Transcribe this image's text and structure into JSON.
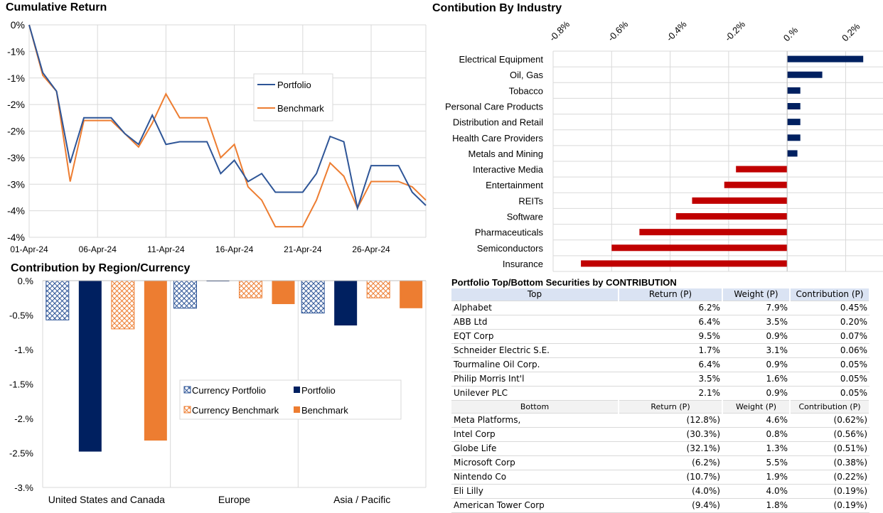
{
  "colors": {
    "portfolio": "#2e5597",
    "benchmark": "#ed7d31",
    "navy": "#002060",
    "red": "#c00000",
    "grid": "#d9d9d9"
  },
  "cumulative": {
    "title": "Cumulative Return",
    "legend": [
      "Portfolio",
      "Benchmark"
    ],
    "chart_data": {
      "type": "line",
      "title": "Cumulative Return",
      "x_tick_labels": [
        "01-Apr-24",
        "06-Apr-24",
        "11-Apr-24",
        "16-Apr-24",
        "21-Apr-24",
        "26-Apr-24"
      ],
      "y_tick_labels": [
        "0%",
        "-1%",
        "-1%",
        "-2%",
        "-2%",
        "-3%",
        "-3%",
        "-4%",
        "-4%"
      ],
      "ylim": [
        -4.0,
        0.0
      ],
      "x_range": [
        0,
        29
      ],
      "grid": true,
      "legend_position": "center-right",
      "series": [
        {
          "name": "Portfolio",
          "x": [
            0,
            1,
            2,
            3,
            4,
            5,
            6,
            7,
            8,
            9,
            10,
            11,
            12,
            13,
            14,
            15,
            16,
            17,
            18,
            19,
            20,
            21,
            22,
            23,
            24,
            25,
            26,
            27,
            28,
            29
          ],
          "values": [
            0.0,
            -0.9,
            -1.25,
            -2.6,
            -1.75,
            -1.75,
            -1.75,
            -2.05,
            -2.25,
            -1.7,
            -2.25,
            -2.2,
            -2.2,
            -2.2,
            -2.8,
            -2.55,
            -2.95,
            -2.8,
            -3.15,
            -3.15,
            -3.15,
            -2.8,
            -2.1,
            -2.2,
            -3.45,
            -2.65,
            -2.65,
            -2.65,
            -3.15,
            -3.4
          ]
        },
        {
          "name": "Benchmark",
          "x": [
            0,
            1,
            2,
            3,
            4,
            5,
            6,
            7,
            8,
            9,
            10,
            11,
            12,
            13,
            14,
            15,
            16,
            17,
            18,
            19,
            20,
            21,
            22,
            23,
            24,
            25,
            26,
            27,
            28,
            29
          ],
          "values": [
            0.0,
            -0.95,
            -1.25,
            -2.95,
            -1.8,
            -1.8,
            -1.8,
            -2.05,
            -2.3,
            -1.85,
            -1.3,
            -1.75,
            -1.75,
            -1.75,
            -2.5,
            -2.25,
            -3.05,
            -3.3,
            -3.8,
            -3.8,
            -3.8,
            -3.3,
            -2.6,
            -2.85,
            -3.45,
            -2.95,
            -2.95,
            -2.95,
            -3.05,
            -3.3
          ]
        }
      ]
    }
  },
  "industry": {
    "title": "Contibution By Industry",
    "chart_data": {
      "type": "bar",
      "orientation": "horizontal",
      "title": "Contibution By Industry",
      "x_tick_labels": [
        "-0.8%",
        "-0.6%",
        "-0.4%",
        "-0.2%",
        "0.%",
        "0.2%"
      ],
      "xlim": [
        -0.8,
        0.33
      ],
      "categories": [
        "Electrical Equipment",
        "Oil, Gas",
        "Tobacco",
        "Personal Care Products",
        "Distribution and Retail",
        "Health Care Providers",
        "Metals and Mining",
        "Interactive Media",
        "Entertainment",
        "REITs",
        "Software",
        "Pharmaceuticals",
        "Semiconductors",
        "Insurance"
      ],
      "values": [
        0.26,
        0.12,
        0.045,
        0.045,
        0.045,
        0.045,
        0.035,
        -0.175,
        -0.215,
        -0.325,
        -0.38,
        -0.505,
        -0.6,
        -0.705
      ]
    }
  },
  "region": {
    "title": "Contribution by Region/Currency",
    "legend": [
      "Currency Portfolio",
      "Portfolio",
      "Currency Benchmark",
      "Benchmark"
    ],
    "chart_data": {
      "type": "bar",
      "title": "Contribution by Region/Currency",
      "y_tick_labels": [
        "0.%",
        "-0.5%",
        "-1.%",
        "-1.5%",
        "-2.%",
        "-2.5%",
        "-3.%"
      ],
      "ylim": [
        -3.0,
        0.0
      ],
      "categories": [
        "United States and Canada",
        "Europe",
        "Asia / Pacific"
      ],
      "legend_position": "center-right",
      "series": [
        {
          "name": "Currency Portfolio",
          "values": [
            -0.57,
            -0.4,
            -0.47
          ]
        },
        {
          "name": "Portfolio",
          "values": [
            -2.48,
            -0.01,
            -0.65
          ]
        },
        {
          "name": "Currency Benchmark",
          "values": [
            -0.7,
            -0.25,
            -0.25
          ]
        },
        {
          "name": "Benchmark",
          "values": [
            -2.32,
            -0.34,
            -0.4
          ]
        }
      ]
    }
  },
  "securities": {
    "title": "Portfolio Top/Bottom Securities by CONTRIBUTION",
    "top_headers": [
      "Top",
      "Return (P)",
      "Weight (P)",
      "Contribution (P)"
    ],
    "top_rows": [
      [
        "Alphabet",
        "6.2%",
        "7.9%",
        "0.45%"
      ],
      [
        "ABB Ltd",
        "6.4%",
        "3.5%",
        "0.20%"
      ],
      [
        "EQT Corp",
        "9.5%",
        "0.9%",
        "0.07%"
      ],
      [
        "Schneider Electric S.E.",
        "1.7%",
        "3.1%",
        "0.06%"
      ],
      [
        "Tourmaline Oil Corp.",
        "6.4%",
        "0.9%",
        "0.05%"
      ],
      [
        "Philip Morris Int'l",
        "3.5%",
        "1.6%",
        "0.05%"
      ],
      [
        "Unilever PLC",
        "2.1%",
        "0.9%",
        "0.05%"
      ]
    ],
    "bottom_headers": [
      "Bottom",
      "Return (P)",
      "Weight (P)",
      "Contribution (P)"
    ],
    "bottom_rows": [
      [
        "Meta Platforms,",
        "(12.8%)",
        "4.6%",
        "(0.62%)"
      ],
      [
        "Intel Corp",
        "(30.3%)",
        "0.8%",
        "(0.56%)"
      ],
      [
        "Globe Life",
        "(32.1%)",
        "1.3%",
        "(0.51%)"
      ],
      [
        "Microsoft Corp",
        "(6.2%)",
        "5.5%",
        "(0.38%)"
      ],
      [
        "Nintendo Co",
        "(10.7%)",
        "1.9%",
        "(0.22%)"
      ],
      [
        "Eli Lilly",
        "(4.0%)",
        "4.0%",
        "(0.19%)"
      ],
      [
        "American Tower Corp",
        "(9.4%)",
        "1.8%",
        "(0.19%)"
      ]
    ]
  }
}
